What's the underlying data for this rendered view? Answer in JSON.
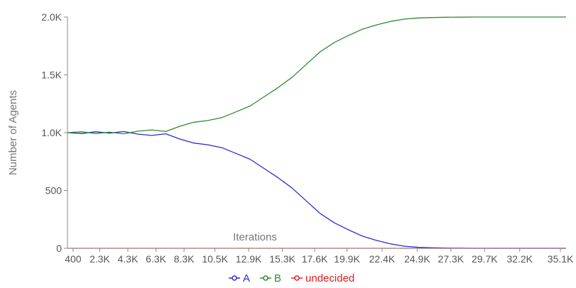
{
  "chart_data": {
    "type": "line",
    "title": "",
    "xlabel": "Iterations",
    "ylabel": "Number of Agents",
    "xlim": [
      0,
      35500
    ],
    "ylim": [
      0,
      2000
    ],
    "grid": false,
    "legend_position": "bottom-center",
    "x_ticks": [
      {
        "value": 400,
        "label": "400"
      },
      {
        "value": 2300,
        "label": "2.3K"
      },
      {
        "value": 4300,
        "label": "4.3K"
      },
      {
        "value": 6300,
        "label": "6.3K"
      },
      {
        "value": 8300,
        "label": "8.3K"
      },
      {
        "value": 10500,
        "label": "10.5K"
      },
      {
        "value": 12900,
        "label": "12.9K"
      },
      {
        "value": 15300,
        "label": "15.3K"
      },
      {
        "value": 17600,
        "label": "17.6K"
      },
      {
        "value": 19900,
        "label": "19.9K"
      },
      {
        "value": 22400,
        "label": "22.4K"
      },
      {
        "value": 24900,
        "label": "24.9K"
      },
      {
        "value": 27300,
        "label": "27.3K"
      },
      {
        "value": 29700,
        "label": "29.7K"
      },
      {
        "value": 32200,
        "label": "32.2K"
      },
      {
        "value": 35100,
        "label": "35.1K"
      }
    ],
    "y_ticks": [
      {
        "value": 0,
        "label": "0"
      },
      {
        "value": 500,
        "label": "500"
      },
      {
        "value": 1000,
        "label": "1.0K"
      },
      {
        "value": 1500,
        "label": "1.5K"
      },
      {
        "value": 2000,
        "label": "2.0K"
      }
    ],
    "series": [
      {
        "name": "A",
        "color": "#2b2bd9",
        "x": [
          0,
          1000,
          2000,
          3000,
          4000,
          5000,
          6000,
          7000,
          8000,
          9000,
          10000,
          11000,
          12000,
          13000,
          14000,
          15000,
          16000,
          17000,
          18000,
          19000,
          20000,
          21000,
          22000,
          23000,
          24000,
          25000,
          26000,
          27000,
          28000,
          29000,
          30000,
          31000,
          32000,
          33000,
          34000,
          35500
        ],
        "y": [
          1000,
          992,
          1008,
          996,
          1010,
          988,
          976,
          990,
          945,
          910,
          895,
          870,
          820,
          770,
          690,
          610,
          520,
          410,
          300,
          220,
          160,
          105,
          68,
          38,
          18,
          8,
          4,
          2,
          1,
          0,
          0,
          0,
          0,
          0,
          0,
          0
        ]
      },
      {
        "name": "B",
        "color": "#2e8b2e",
        "x": [
          0,
          1000,
          2000,
          3000,
          4000,
          5000,
          6000,
          7000,
          8000,
          9000,
          10000,
          11000,
          12000,
          13000,
          14000,
          15000,
          16000,
          17000,
          18000,
          19000,
          20000,
          21000,
          22000,
          23000,
          24000,
          25000,
          26000,
          27000,
          28000,
          29000,
          30000,
          31000,
          32000,
          33000,
          34000,
          35500
        ],
        "y": [
          1000,
          1008,
          992,
          1004,
          990,
          1012,
          1024,
          1010,
          1055,
          1090,
          1105,
          1130,
          1180,
          1230,
          1310,
          1390,
          1480,
          1590,
          1700,
          1780,
          1840,
          1895,
          1932,
          1962,
          1982,
          1992,
          1996,
          1998,
          1999,
          2000,
          2000,
          2000,
          2000,
          2000,
          2000,
          2000
        ]
      },
      {
        "name": "undecided",
        "color": "#e02020",
        "x": [
          0,
          35500
        ],
        "y": [
          0,
          0
        ]
      }
    ]
  }
}
